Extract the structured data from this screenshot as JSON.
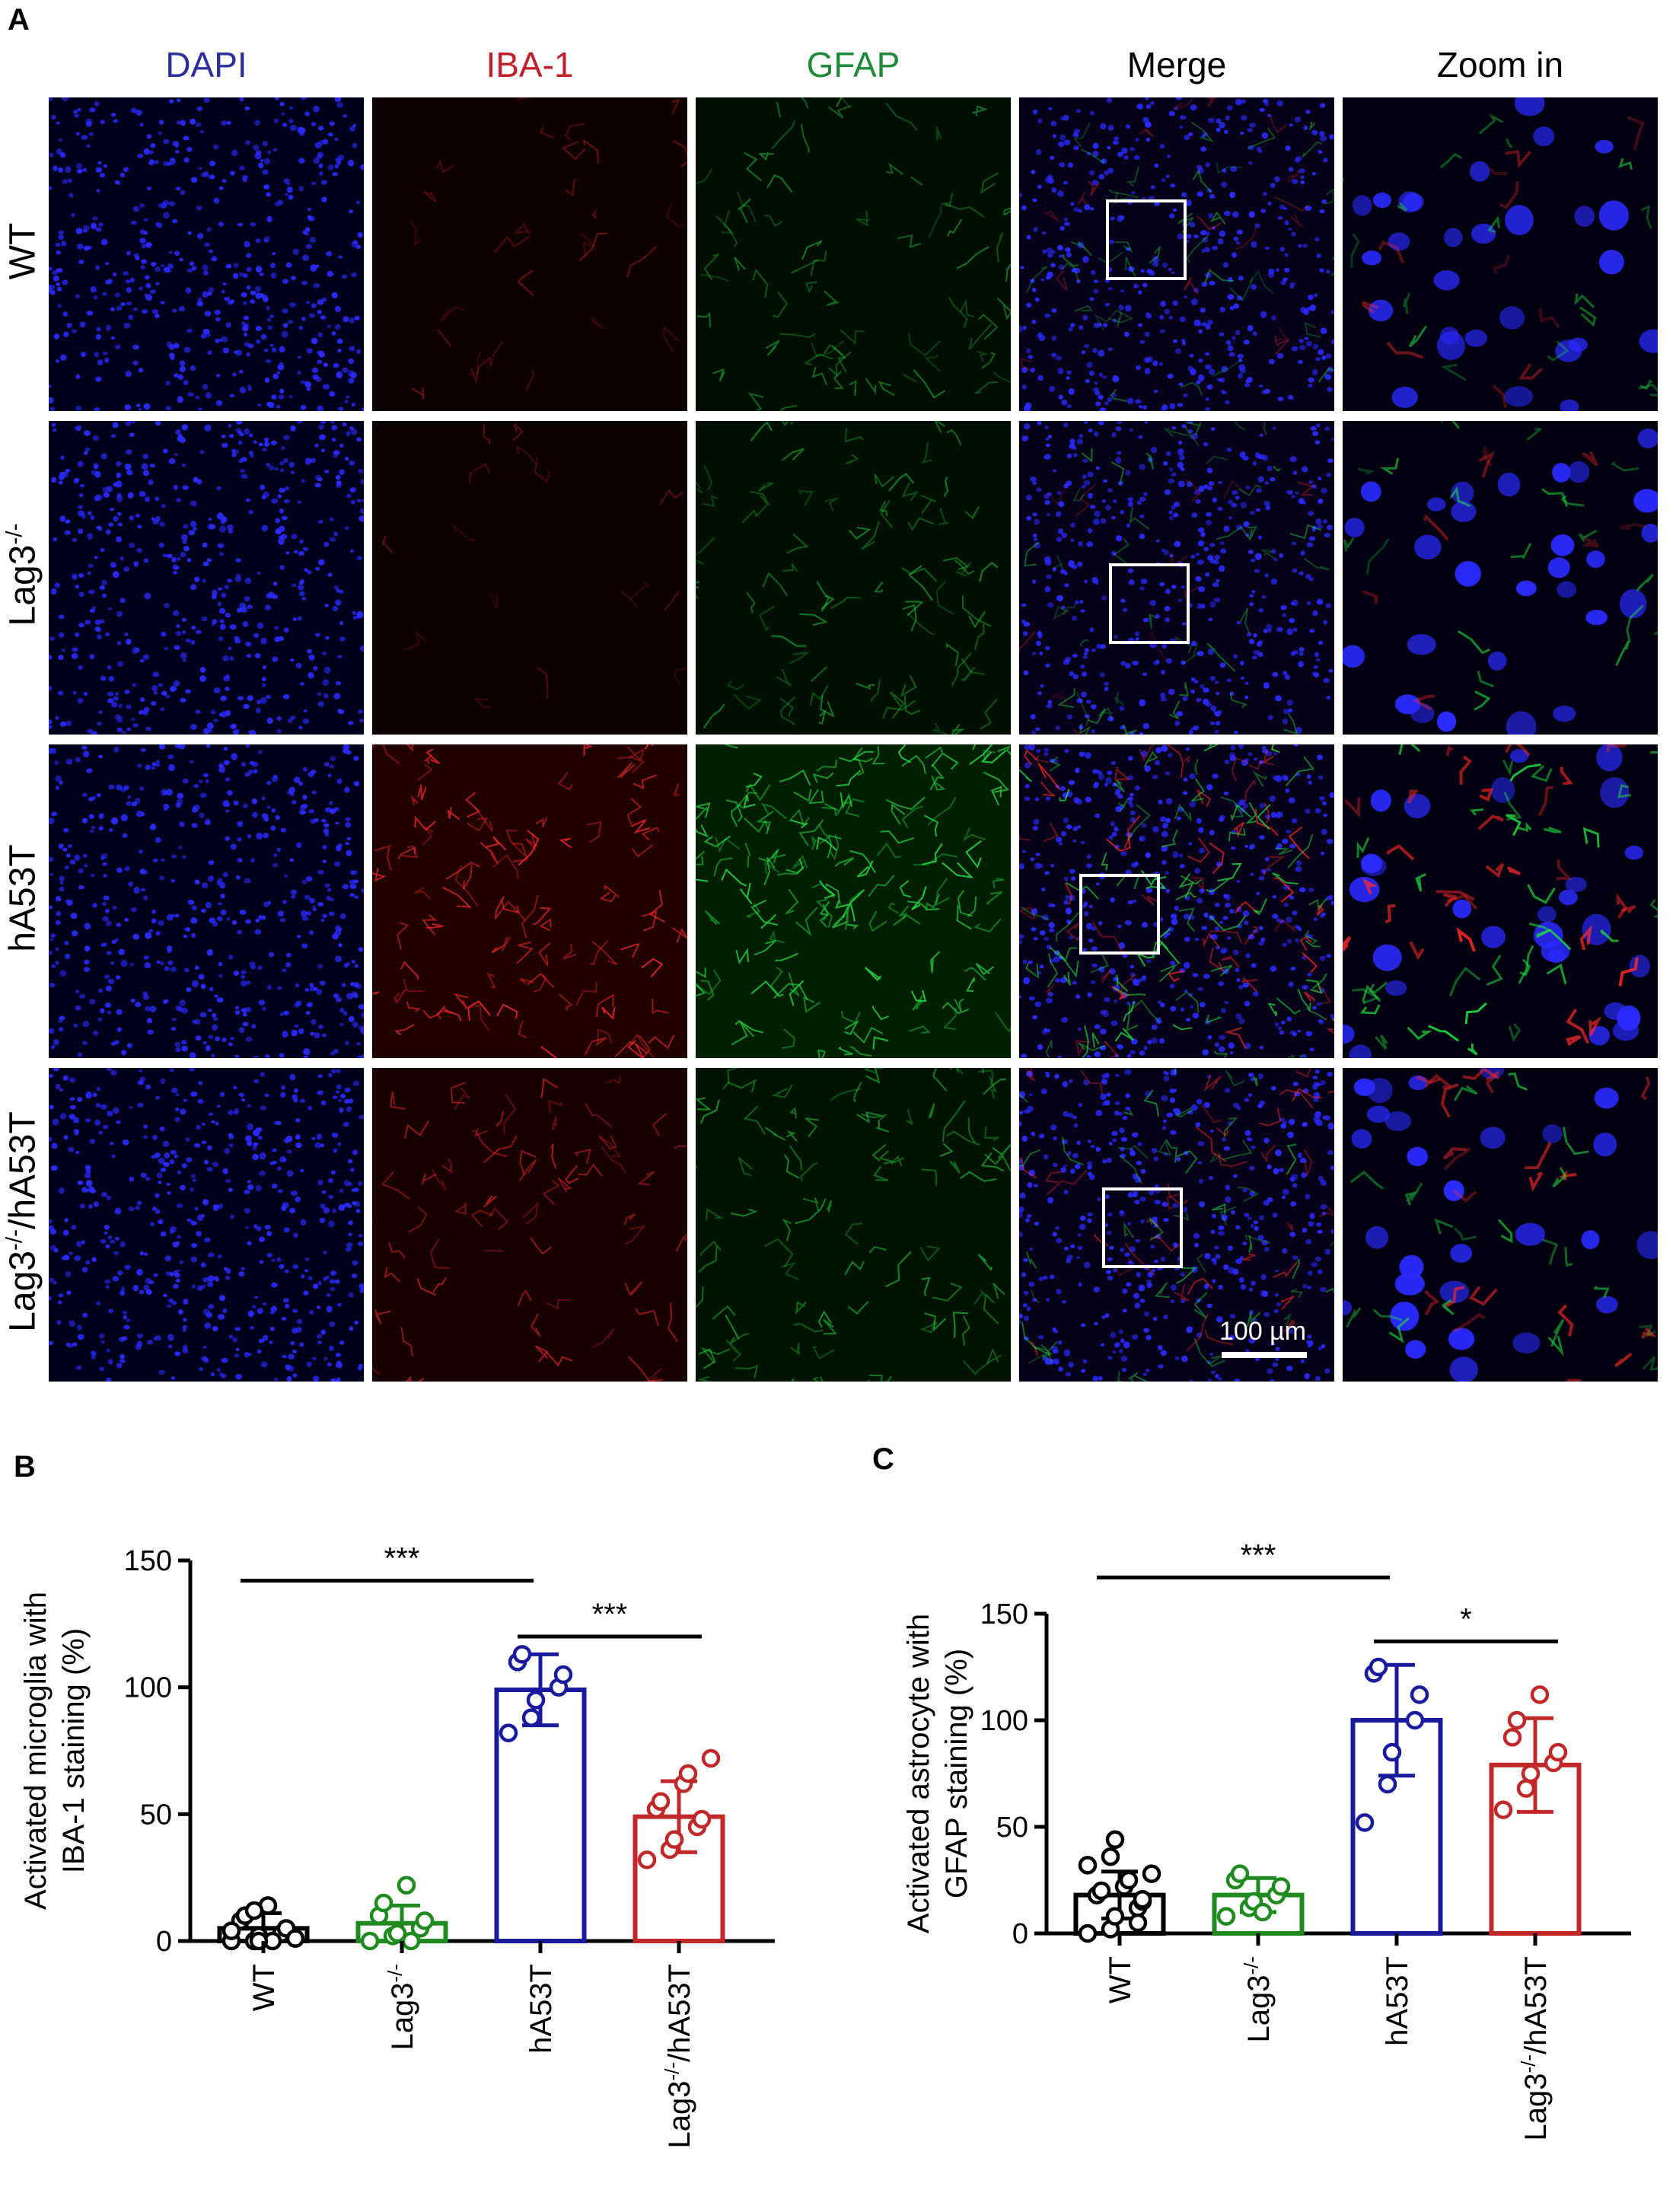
{
  "panels": {
    "a": "A",
    "b": "B",
    "c": "C"
  },
  "micrograph": {
    "columns": [
      {
        "label": "DAPI",
        "color": "#2e2e9e"
      },
      {
        "label": "IBA-1",
        "color": "#c0202a"
      },
      {
        "label": "GFAP",
        "color": "#1f8a3a"
      },
      {
        "label": "Merge",
        "color": "#000000"
      },
      {
        "label": "Zoom in",
        "color": "#000000"
      }
    ],
    "rows": [
      {
        "label": "WT",
        "label_sup": "",
        "label_tail": ""
      },
      {
        "label": "Lag3",
        "label_sup": "-/-",
        "label_tail": ""
      },
      {
        "label": "hA53T",
        "label_sup": "",
        "label_tail": ""
      },
      {
        "label": "Lag3",
        "label_sup": "-/-",
        "label_tail": "/hA53T"
      }
    ],
    "scale_bar_label": "100 µm",
    "channel_colors": {
      "dapi": "#2a2aff",
      "iba1": "#ff2a2a",
      "gfap": "#22dd44"
    },
    "relative_intensity": {
      "iba1": [
        0.15,
        0.05,
        0.75,
        0.45
      ],
      "gfap": [
        0.3,
        0.35,
        0.85,
        0.45
      ]
    }
  },
  "chart_data": [
    {
      "type": "bar",
      "panel": "B",
      "ylabel_line1": "Activated microglia with",
      "ylabel_line2": "IBA-1 staining (%)",
      "ylim": [
        0,
        150
      ],
      "yticks": [
        "0",
        "50",
        "100",
        "150"
      ],
      "categories": [
        "WT",
        "Lag3-/-",
        "hA53T",
        "Lag3-/-/hA53T"
      ],
      "category_text": [
        {
          "base": "WT",
          "sup": "",
          "tail": ""
        },
        {
          "base": "Lag3",
          "sup": "-/-",
          "tail": ""
        },
        {
          "base": "hA53T",
          "sup": "",
          "tail": ""
        },
        {
          "base": "Lag3",
          "sup": "-/-",
          "tail": "/hA53T"
        }
      ],
      "colors": [
        "#000000",
        "#1f8a1f",
        "#1a1a9e",
        "#c0282a"
      ],
      "means": [
        5,
        7,
        99,
        49
      ],
      "sd": [
        6,
        7,
        14,
        14
      ],
      "points": [
        [
          0,
          0,
          2,
          3,
          5,
          8,
          10,
          14,
          0,
          1,
          4,
          12,
          0
        ],
        [
          0,
          2,
          3,
          5,
          8,
          10,
          15,
          22,
          0
        ],
        [
          82,
          88,
          95,
          100,
          105,
          110,
          113
        ],
        [
          32,
          36,
          40,
          45,
          48,
          52,
          55,
          62,
          66,
          72
        ]
      ],
      "significance": [
        {
          "from": 0,
          "to": 2,
          "label": "***",
          "y": 142
        },
        {
          "from": 2,
          "to": 3,
          "label": "***",
          "y": 120
        }
      ]
    },
    {
      "type": "bar",
      "panel": "C",
      "ylabel_line1": "Activated astrocyte with",
      "ylabel_line2": "GFAP staining (%)",
      "ylim": [
        0,
        150
      ],
      "yticks": [
        "0",
        "50",
        "100",
        "150"
      ],
      "categories": [
        "WT",
        "Lag3-/-",
        "hA53T",
        "Lag3-/-/hA53T"
      ],
      "category_text": [
        {
          "base": "WT",
          "sup": "",
          "tail": ""
        },
        {
          "base": "Lag3",
          "sup": "-/-",
          "tail": ""
        },
        {
          "base": "hA53T",
          "sup": "",
          "tail": ""
        },
        {
          "base": "Lag3",
          "sup": "-/-",
          "tail": "/hA53T"
        }
      ],
      "colors": [
        "#000000",
        "#1f8a1f",
        "#1a1a9e",
        "#c0282a"
      ],
      "means": [
        18,
        18,
        100,
        79
      ],
      "sd": [
        11,
        8,
        26,
        22
      ],
      "points": [
        [
          0,
          2,
          8,
          12,
          15,
          18,
          20,
          22,
          25,
          28,
          32,
          36,
          44,
          5,
          16
        ],
        [
          8,
          12,
          15,
          18,
          22,
          25,
          28,
          10
        ],
        [
          52,
          70,
          85,
          100,
          112,
          122,
          125
        ],
        [
          58,
          68,
          75,
          80,
          85,
          92,
          100,
          112
        ]
      ],
      "significance": [
        {
          "from": 0,
          "to": 2,
          "label": "***",
          "y": 167
        },
        {
          "from": 2,
          "to": 3,
          "label": "*",
          "y": 137
        }
      ]
    }
  ]
}
